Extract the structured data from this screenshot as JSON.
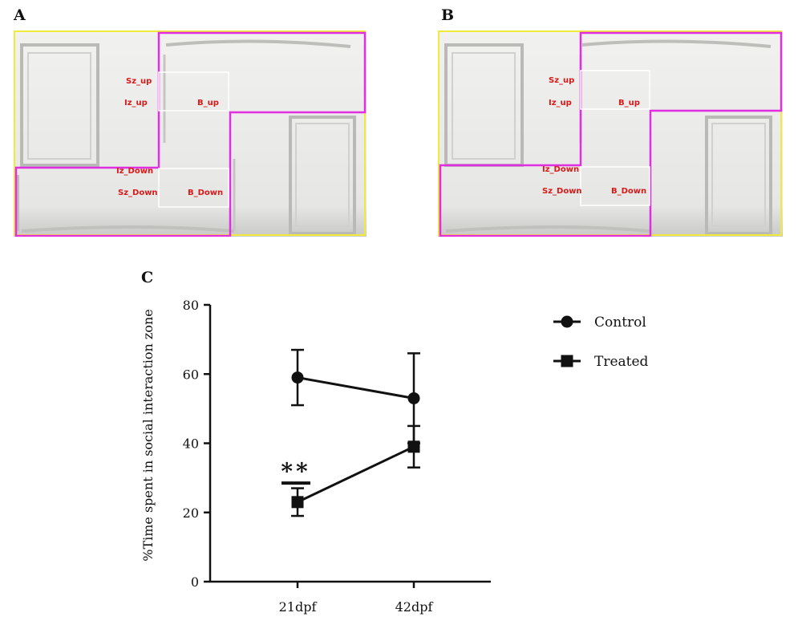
{
  "panels": {
    "a": {
      "letter": "A"
    },
    "b": {
      "letter": "B"
    },
    "c": {
      "letter": "C"
    }
  },
  "zones": {
    "a": {
      "sz_up": "Sz_up",
      "iz_up": "Iz_up",
      "b_up": "B_up",
      "iz_down": "Iz_Down",
      "sz_down": "Sz_Down",
      "b_down": "B_Down"
    },
    "b": {
      "sz_up": "Sz_up",
      "iz_up": "Iz_up",
      "b_up": "B_up",
      "iz_down": "Iz_Down",
      "sz_down": "Sz_Down",
      "b_down": "B_Down"
    }
  },
  "colors": {
    "zone_outline": "#e02ee0",
    "tank_outline": "#f2ea3a",
    "zone_text": "#d81a1a",
    "series": "#111111"
  },
  "chart_data": {
    "type": "line",
    "x": [
      "21dpf",
      "42dpf"
    ],
    "ylabel": "%Time spent in social interaction zone",
    "ylim": [
      0,
      80
    ],
    "yticks": [
      "0",
      "20",
      "40",
      "60",
      "80"
    ],
    "series": [
      {
        "name": "Control",
        "marker": "circle",
        "values": [
          59,
          53
        ],
        "err_low": [
          51,
          40
        ],
        "err_high": [
          67,
          66
        ]
      },
      {
        "name": "Treated",
        "marker": "square",
        "values": [
          23,
          39
        ],
        "err_low": [
          19,
          33
        ],
        "err_high": [
          27,
          45
        ]
      }
    ],
    "annotation": {
      "text": "**",
      "x": "21dpf"
    },
    "legend_position": "top-right"
  }
}
